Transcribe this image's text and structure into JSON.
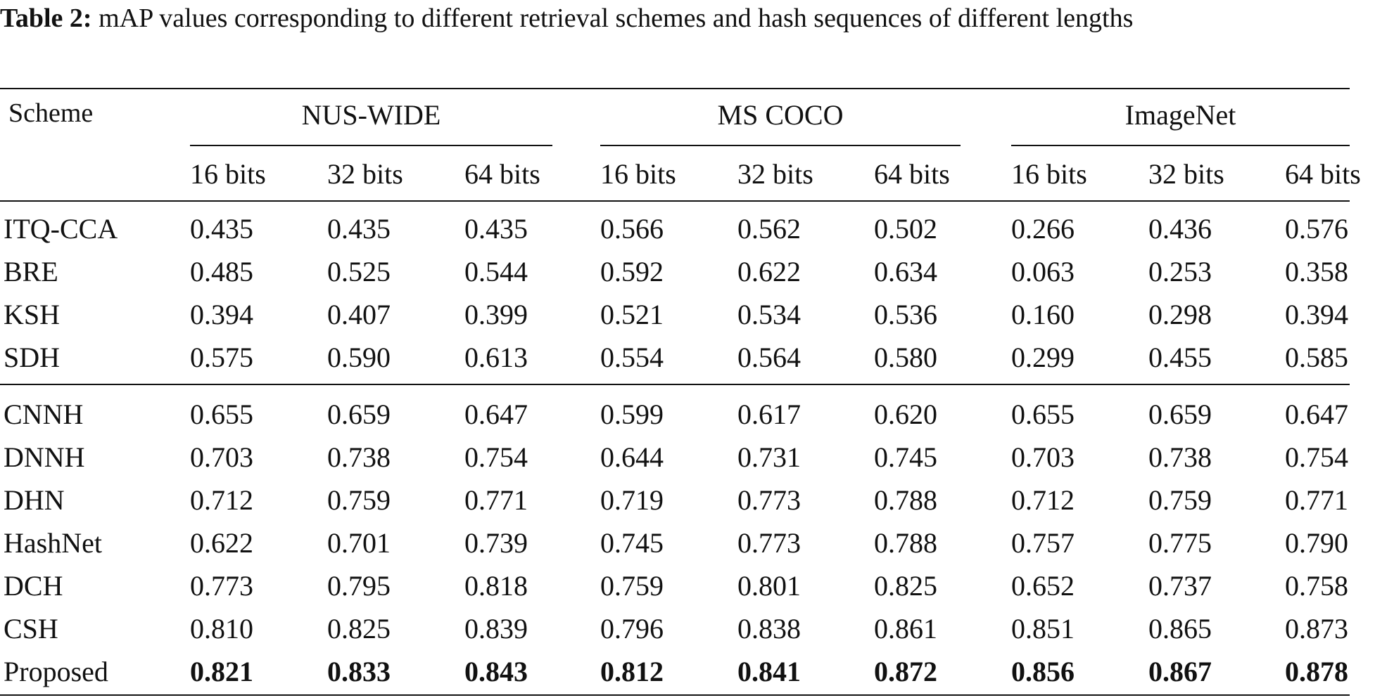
{
  "caption": {
    "label": "Table 2:",
    "text": "mAP values corresponding to different retrieval schemes and hash sequences of different lengths"
  },
  "table": {
    "scheme_header": "Scheme",
    "groups": [
      "NUS-WIDE",
      "MS COCO",
      "ImageNet"
    ],
    "bits": [
      "16 bits",
      "32 bits",
      "64 bits",
      "16 bits",
      "32 bits",
      "64 bits",
      "16 bits",
      "32 bits",
      "64 bits"
    ],
    "sections": [
      {
        "rows": [
          {
            "scheme": "ITQ-CCA",
            "values": [
              "0.435",
              "0.435",
              "0.435",
              "0.566",
              "0.562",
              "0.502",
              "0.266",
              "0.436",
              "0.576"
            ],
            "bold": false
          },
          {
            "scheme": "BRE",
            "values": [
              "0.485",
              "0.525",
              "0.544",
              "0.592",
              "0.622",
              "0.634",
              "0.063",
              "0.253",
              "0.358"
            ],
            "bold": false
          },
          {
            "scheme": "KSH",
            "values": [
              "0.394",
              "0.407",
              "0.399",
              "0.521",
              "0.534",
              "0.536",
              "0.160",
              "0.298",
              "0.394"
            ],
            "bold": false
          },
          {
            "scheme": "SDH",
            "values": [
              "0.575",
              "0.590",
              "0.613",
              "0.554",
              "0.564",
              "0.580",
              "0.299",
              "0.455",
              "0.585"
            ],
            "bold": false
          }
        ]
      },
      {
        "rows": [
          {
            "scheme": "CNNH",
            "values": [
              "0.655",
              "0.659",
              "0.647",
              "0.599",
              "0.617",
              "0.620",
              "0.655",
              "0.659",
              "0.647"
            ],
            "bold": false
          },
          {
            "scheme": "DNNH",
            "values": [
              "0.703",
              "0.738",
              "0.754",
              "0.644",
              "0.731",
              "0.745",
              "0.703",
              "0.738",
              "0.754"
            ],
            "bold": false
          },
          {
            "scheme": "DHN",
            "values": [
              "0.712",
              "0.759",
              "0.771",
              "0.719",
              "0.773",
              "0.788",
              "0.712",
              "0.759",
              "0.771"
            ],
            "bold": false
          },
          {
            "scheme": "HashNet",
            "values": [
              "0.622",
              "0.701",
              "0.739",
              "0.745",
              "0.773",
              "0.788",
              "0.757",
              "0.775",
              "0.790"
            ],
            "bold": false
          },
          {
            "scheme": "DCH",
            "values": [
              "0.773",
              "0.795",
              "0.818",
              "0.759",
              "0.801",
              "0.825",
              "0.652",
              "0.737",
              "0.758"
            ],
            "bold": false
          },
          {
            "scheme": "CSH",
            "values": [
              "0.810",
              "0.825",
              "0.839",
              "0.796",
              "0.838",
              "0.861",
              "0.851",
              "0.865",
              "0.873"
            ],
            "bold": false
          },
          {
            "scheme": "Proposed",
            "values": [
              "0.821",
              "0.833",
              "0.843",
              "0.812",
              "0.841",
              "0.872",
              "0.856",
              "0.867",
              "0.878"
            ],
            "bold": true
          }
        ]
      }
    ]
  }
}
